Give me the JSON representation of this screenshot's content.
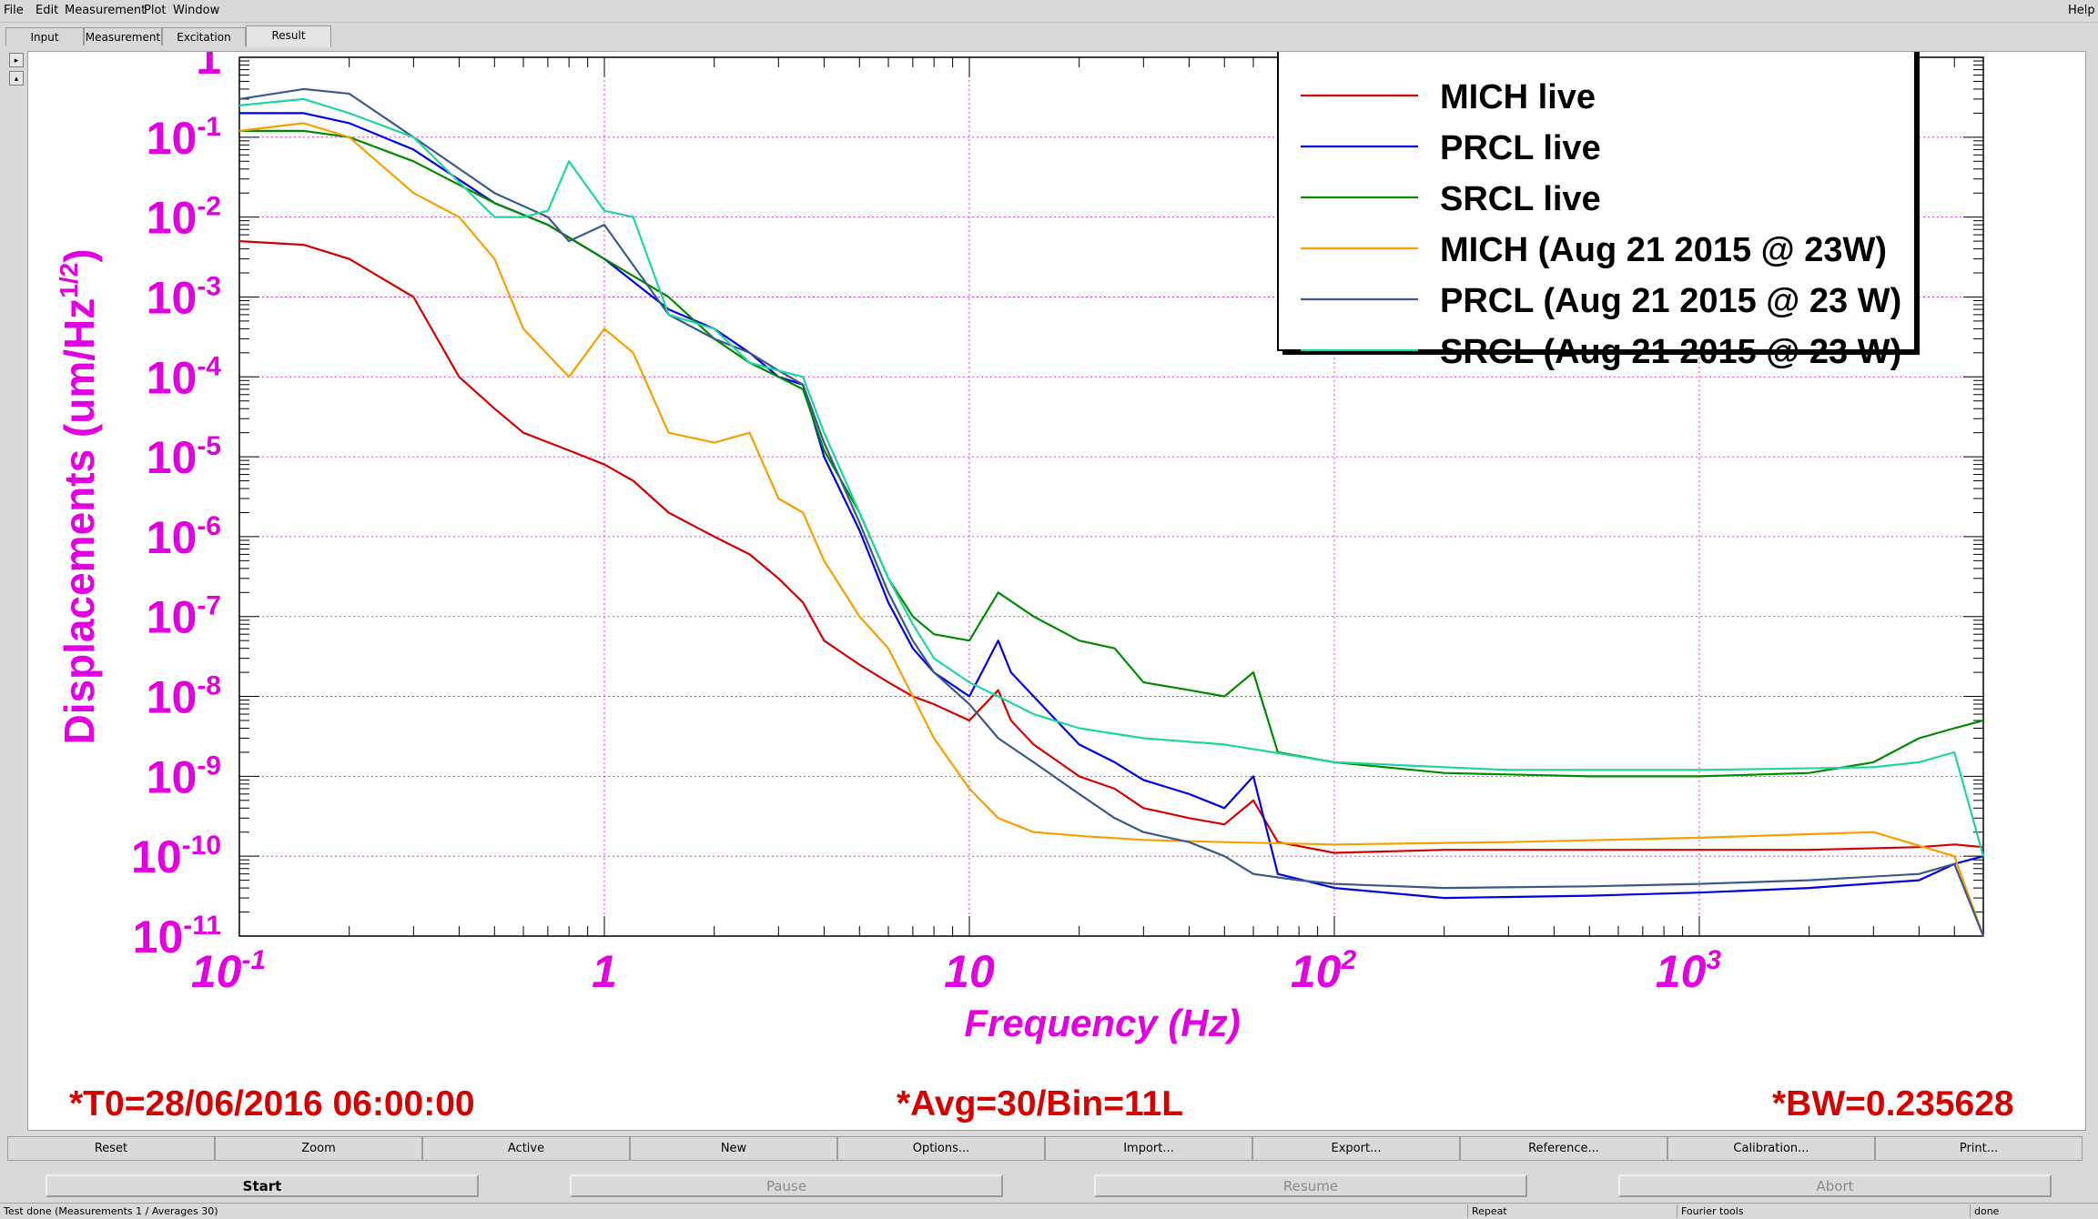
{
  "menu": [
    "File",
    "Edit",
    "Measurement",
    "Plot",
    "Window"
  ],
  "help_label": "Help",
  "tabs": [
    "Input",
    "Measurement",
    "Excitation",
    "Result"
  ],
  "active_tab": "Result",
  "side_buttons": [
    "▸",
    "▴"
  ],
  "chart_data": {
    "type": "line",
    "xscale": "log",
    "yscale": "log",
    "xlim": [
      0.1,
      6000
    ],
    "ylim": [
      1e-11,
      1
    ],
    "xlabel": "Frequency (Hz)",
    "ylabel": "Displacements (um/Hz^1/2)",
    "xticks": [
      {
        "value": 0.1,
        "base": "10",
        "exp": "-1"
      },
      {
        "value": 1,
        "base": "1",
        "exp": ""
      },
      {
        "value": 10,
        "base": "10",
        "exp": ""
      },
      {
        "value": 100,
        "base": "10",
        "exp": "2"
      },
      {
        "value": 1000,
        "base": "10",
        "exp": "3"
      }
    ],
    "yticks": [
      {
        "value": 1,
        "base": "1",
        "exp": ""
      },
      {
        "value": 0.1,
        "base": "10",
        "exp": "-1"
      },
      {
        "value": 0.01,
        "base": "10",
        "exp": "-2"
      },
      {
        "value": 0.001,
        "base": "10",
        "exp": "-3"
      },
      {
        "value": 0.0001,
        "base": "10",
        "exp": "-4"
      },
      {
        "value": 1e-05,
        "base": "10",
        "exp": "-5"
      },
      {
        "value": 1e-06,
        "base": "10",
        "exp": "-6"
      },
      {
        "value": 1e-07,
        "base": "10",
        "exp": "-7"
      },
      {
        "value": 1e-08,
        "base": "10",
        "exp": "-8"
      },
      {
        "value": 1e-09,
        "base": "10",
        "exp": "-9"
      },
      {
        "value": 1e-10,
        "base": "10",
        "exp": "-10"
      },
      {
        "value": 1e-11,
        "base": "10",
        "exp": "-11"
      }
    ],
    "grid": true,
    "legend_position": "top-right",
    "series": [
      {
        "name": "MICH live",
        "color": "#d40000",
        "x": [
          0.1,
          0.15,
          0.2,
          0.3,
          0.4,
          0.5,
          0.6,
          0.8,
          1,
          1.2,
          1.5,
          2,
          2.5,
          3,
          3.5,
          4,
          5,
          6,
          7,
          8,
          10,
          12,
          13,
          15,
          20,
          25,
          30,
          40,
          50,
          60,
          70,
          100,
          200,
          500,
          1000,
          2000,
          4000,
          5000,
          6000
        ],
        "y": [
          0.005,
          0.0045,
          0.003,
          0.001,
          0.0001,
          4e-05,
          2e-05,
          1.2e-05,
          8e-06,
          5e-06,
          2e-06,
          1e-06,
          6e-07,
          3e-07,
          1.5e-07,
          5e-08,
          2.5e-08,
          1.5e-08,
          1e-08,
          8e-09,
          5e-09,
          1.2e-08,
          5e-09,
          2.5e-09,
          1e-09,
          7e-10,
          4e-10,
          3e-10,
          2.5e-10,
          5e-10,
          1.5e-10,
          1.1e-10,
          1.2e-10,
          1.2e-10,
          1.2e-10,
          1.2e-10,
          1.3e-10,
          1.4e-10,
          1.3e-10
        ]
      },
      {
        "name": "PRCL live",
        "color": "#0000e0",
        "x": [
          0.1,
          0.15,
          0.2,
          0.3,
          0.5,
          0.7,
          1,
          1.5,
          2,
          2.5,
          3,
          3.5,
          4,
          5,
          6,
          7,
          8,
          10,
          12,
          13,
          15,
          20,
          25,
          30,
          40,
          50,
          60,
          70,
          100,
          200,
          500,
          1000,
          2000,
          4000,
          5000,
          6000
        ],
        "y": [
          0.2,
          0.2,
          0.15,
          0.07,
          0.015,
          0.008,
          0.003,
          0.0007,
          0.0004,
          0.0002,
          0.0001,
          8e-05,
          1e-05,
          1.2e-06,
          1.5e-07,
          4e-08,
          2e-08,
          1e-08,
          5e-08,
          2e-08,
          1e-08,
          2.5e-09,
          1.5e-09,
          9e-10,
          6e-10,
          4e-10,
          1e-09,
          6e-11,
          4e-11,
          3e-11,
          3.2e-11,
          3.5e-11,
          4e-11,
          5e-11,
          8e-11,
          1e-10
        ]
      },
      {
        "name": "SRCL live",
        "color": "#008a00",
        "x": [
          0.1,
          0.15,
          0.2,
          0.3,
          0.5,
          0.7,
          1,
          1.5,
          2,
          2.5,
          3,
          3.5,
          4,
          5,
          6,
          7,
          8,
          10,
          12,
          15,
          20,
          25,
          30,
          40,
          50,
          60,
          70,
          100,
          200,
          500,
          1000,
          2000,
          3000,
          4000,
          5000,
          6000
        ],
        "y": [
          0.12,
          0.12,
          0.1,
          0.05,
          0.015,
          0.008,
          0.003,
          0.001,
          0.0003,
          0.00015,
          0.0001,
          7e-05,
          1.2e-05,
          2e-06,
          3e-07,
          1e-07,
          6e-08,
          5e-08,
          2e-07,
          1e-07,
          5e-08,
          4e-08,
          1.5e-08,
          1.2e-08,
          1e-08,
          2e-08,
          2e-09,
          1.5e-09,
          1.1e-09,
          1e-09,
          1e-09,
          1.1e-09,
          1.5e-09,
          3e-09,
          4e-09,
          5e-09
        ]
      },
      {
        "name": "MICH (Aug 21 2015 @ 23W)",
        "color": "#f5a000",
        "x": [
          0.1,
          0.15,
          0.2,
          0.3,
          0.4,
          0.5,
          0.6,
          0.8,
          1,
          1.2,
          1.5,
          2,
          2.5,
          3,
          3.5,
          4,
          5,
          6,
          7,
          8,
          10,
          12,
          15,
          20,
          30,
          50,
          100,
          300,
          1000,
          3000,
          5000,
          6000
        ],
        "y": [
          0.12,
          0.15,
          0.1,
          0.02,
          0.01,
          0.003,
          0.0004,
          0.0001,
          0.0004,
          0.0002,
          2e-05,
          1.5e-05,
          2e-05,
          3e-06,
          2e-06,
          5e-07,
          1e-07,
          4e-08,
          1e-08,
          3e-09,
          7e-10,
          3e-10,
          2e-10,
          1.8e-10,
          1.6e-10,
          1.5e-10,
          1.4e-10,
          1.5e-10,
          1.7e-10,
          2e-10,
          1e-10,
          1e-11
        ]
      },
      {
        "name": "PRCL (Aug 21 2015 @ 23 W)",
        "color": "#3a5a88",
        "x": [
          0.1,
          0.15,
          0.2,
          0.3,
          0.5,
          0.7,
          0.8,
          1,
          1.5,
          2,
          2.5,
          3,
          3.5,
          4,
          5,
          6,
          7,
          8,
          10,
          12,
          15,
          20,
          25,
          30,
          40,
          50,
          60,
          80,
          100,
          200,
          500,
          1000,
          2000,
          4000,
          5000,
          6000
        ],
        "y": [
          0.3,
          0.4,
          0.35,
          0.1,
          0.02,
          0.01,
          0.005,
          0.008,
          0.0006,
          0.0003,
          0.0002,
          0.00012,
          8e-05,
          1.5e-05,
          1.5e-06,
          2e-07,
          5e-08,
          2e-08,
          8e-09,
          3e-09,
          1.5e-09,
          6e-10,
          3e-10,
          2e-10,
          1.5e-10,
          1e-10,
          6e-11,
          5e-11,
          4.5e-11,
          4e-11,
          4.2e-11,
          4.5e-11,
          5e-11,
          6e-11,
          8e-11,
          1e-11
        ]
      },
      {
        "name": "SRCL (Aug 21 2015 @ 23 W)",
        "color": "#20d4a0",
        "x": [
          0.1,
          0.15,
          0.2,
          0.3,
          0.5,
          0.6,
          0.7,
          0.8,
          1,
          1.2,
          1.5,
          2,
          2.5,
          3,
          3.5,
          4,
          5,
          6,
          7,
          8,
          10,
          12,
          15,
          20,
          30,
          50,
          100,
          300,
          1000,
          3000,
          4000,
          5000,
          6000
        ],
        "y": [
          0.25,
          0.3,
          0.2,
          0.1,
          0.01,
          0.01,
          0.012,
          0.05,
          0.012,
          0.01,
          0.0006,
          0.0004,
          0.00015,
          0.00012,
          0.0001,
          2e-05,
          2e-06,
          3e-07,
          8e-08,
          3e-08,
          1.5e-08,
          1e-08,
          6e-09,
          4e-09,
          3e-09,
          2.5e-09,
          1.5e-09,
          1.2e-09,
          1.2e-09,
          1.3e-09,
          1.5e-09,
          2e-09,
          1e-10
        ]
      }
    ]
  },
  "info": {
    "t0": "*T0=28/06/2016 06:00:00",
    "avg": "*Avg=30/Bin=11L",
    "bw": "*BW=0.235628"
  },
  "toolbar": [
    "Reset",
    "Zoom",
    "Active",
    "New",
    "Options...",
    "Import...",
    "Export...",
    "Reference...",
    "Calibration...",
    "Print..."
  ],
  "controls": {
    "start": "Start",
    "pause": "Pause",
    "resume": "Resume",
    "abort": "Abort"
  },
  "status": {
    "message": "Test done (Measurements 1 / Averages 30)",
    "repeat": "Repeat",
    "tools": "Fourier tools",
    "state": "done"
  }
}
